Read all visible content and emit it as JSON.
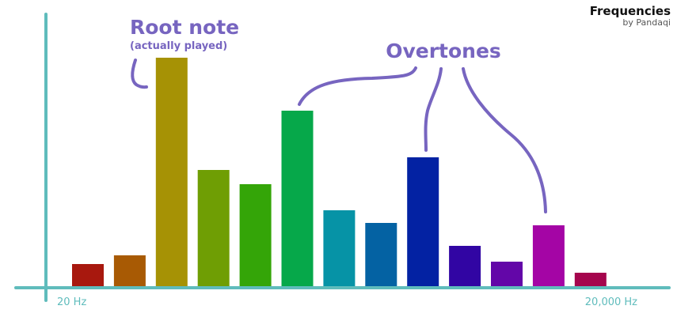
{
  "brand": {
    "title": "Frequencies",
    "subtitle": "by Pandaqi"
  },
  "annotations": {
    "root_title": "Root note",
    "root_sub": "(actually played)",
    "overtones": "Overtones",
    "color": "#7765c0"
  },
  "colors": {
    "axis": "#5fbcbc",
    "axis_label": "#5fbcbc"
  },
  "chart_data": {
    "type": "bar",
    "title": "",
    "xlabel": "",
    "ylabel": "",
    "ylim": [
      0,
      300
    ],
    "x_tick_labels": [
      "20 Hz",
      "20,000 Hz"
    ],
    "values": [
      28,
      39,
      289,
      147,
      129,
      222,
      96,
      80,
      163,
      51,
      31,
      77,
      17
    ],
    "colors": [
      "#a8180e",
      "#a85a04",
      "#a69205",
      "#6f9e04",
      "#34a508",
      "#06a84a",
      "#0693a6",
      "#0462a3",
      "#0322a3",
      "#3105a3",
      "#6306a8",
      "#a405a5",
      "#a5054d"
    ],
    "grid": false,
    "legend": "none",
    "root_index": 2,
    "overtone_indices": [
      5,
      8,
      11
    ]
  }
}
